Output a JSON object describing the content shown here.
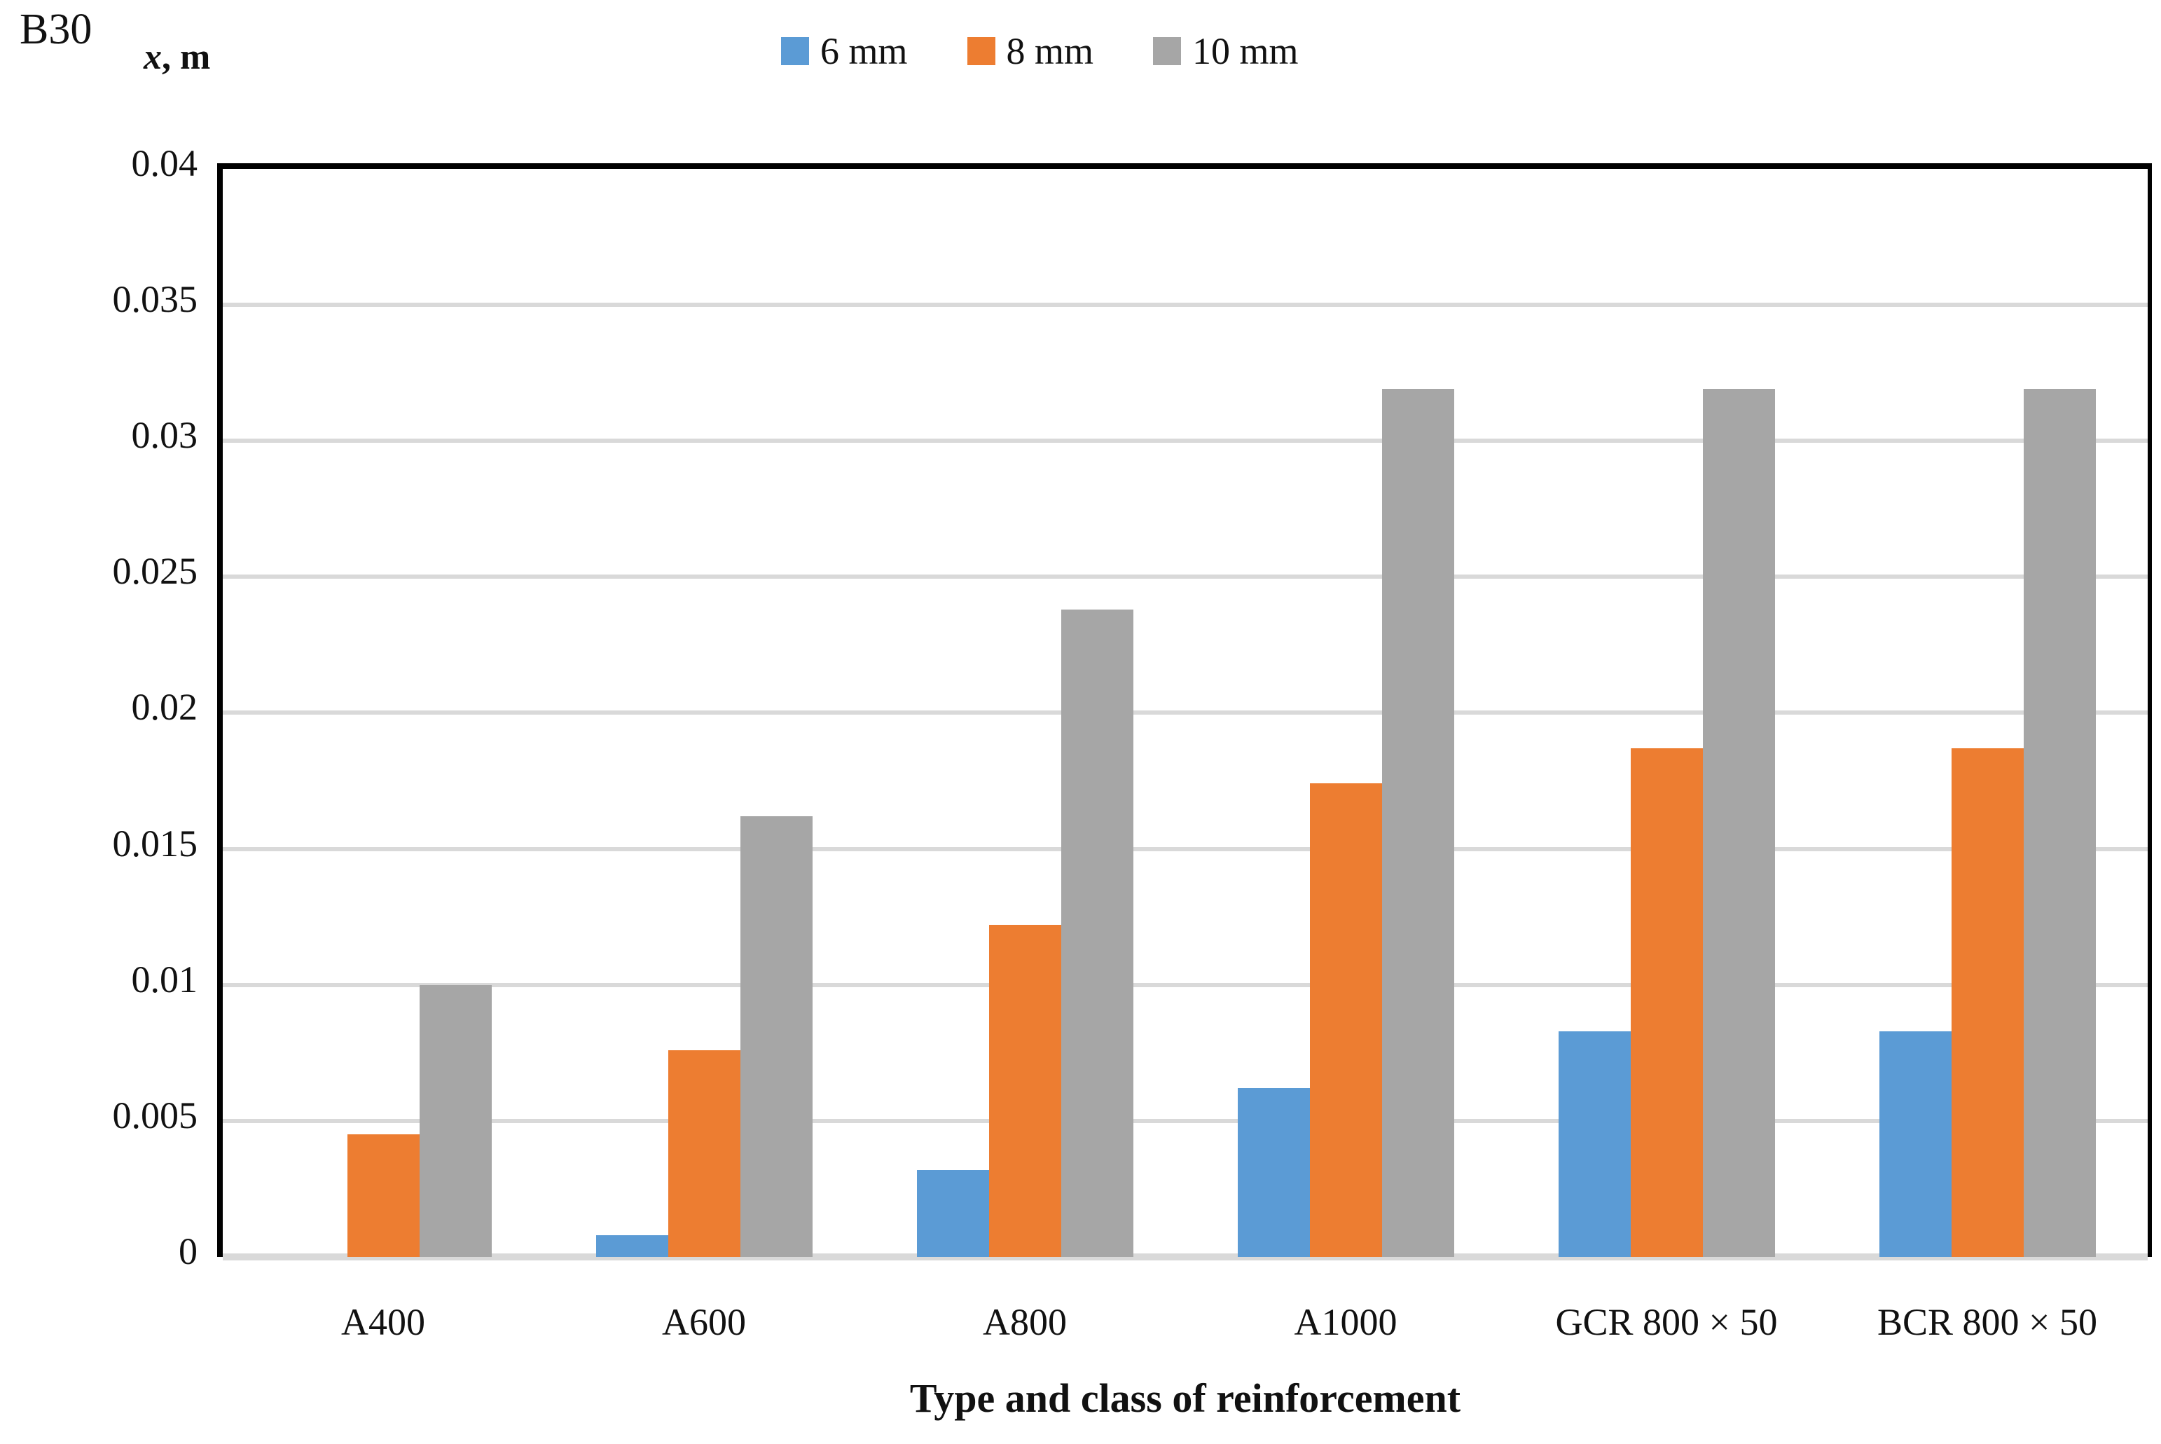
{
  "figure": {
    "corner_label": "B30",
    "y_axis_unit_variable": "x",
    "y_axis_unit_rest": ", m"
  },
  "chart_data": {
    "type": "bar",
    "title": "B30",
    "xlabel": "Type and class of reinforcement",
    "ylabel": "x, m",
    "categories": [
      "A400",
      "A600",
      "A800",
      "A1000",
      "GCR 800 × 50",
      "BCR 800 × 50"
    ],
    "series": [
      {
        "name": "6 mm",
        "color": "#5B9BD5",
        "values": [
          0,
          0.0008,
          0.0032,
          0.0062,
          0.0083,
          0.0083
        ]
      },
      {
        "name": "8 mm",
        "color": "#ED7D31",
        "values": [
          0.0045,
          0.0076,
          0.0122,
          0.0174,
          0.0187,
          0.0187
        ]
      },
      {
        "name": "10 mm",
        "color": "#A6A6A6",
        "values": [
          0.01,
          0.0162,
          0.0238,
          0.0319,
          0.0319,
          0.0319
        ]
      }
    ],
    "ylim": [
      0,
      0.04
    ],
    "ytick_step": 0.005,
    "ytick_labels": [
      "0",
      "0.005",
      "0.01",
      "0.015",
      "0.02",
      "0.025",
      "0.03",
      "0.035",
      "0.04"
    ],
    "grid": true,
    "gridline_color": "#D9D9D9",
    "axis_border_color": "#000000",
    "legend_position": "top"
  }
}
